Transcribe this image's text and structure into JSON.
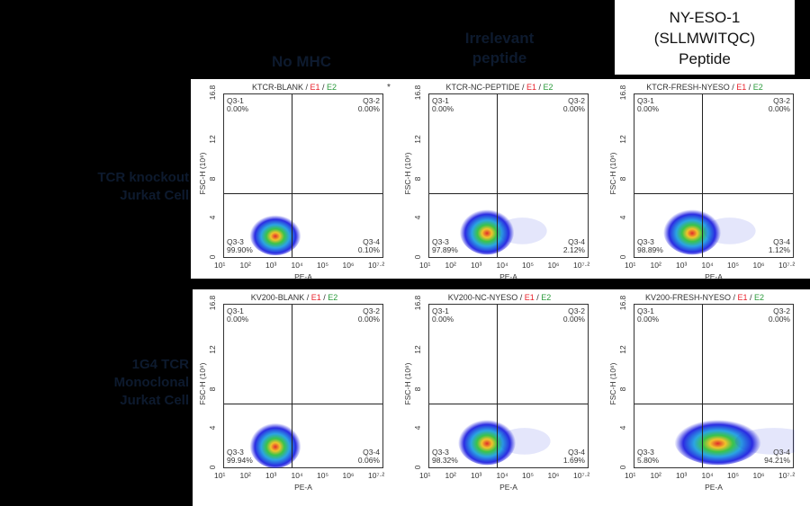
{
  "column_headers": [
    "No MHC",
    "Irrelevant peptide",
    "NY-ESO-1 (SLLMWITQC) Peptide"
  ],
  "nyeso_box": {
    "line1": "NY-ESO-1",
    "line2": "(SLLMWITQC)",
    "line3": "Peptide"
  },
  "col_head_1": {
    "line1": "No MHC"
  },
  "col_head_2": {
    "line1": "Irrelevant",
    "line2": "peptide"
  },
  "row_headers": [
    {
      "line1": "TCR knockout",
      "line2": "Jurkat Cell"
    },
    {
      "line1": "1G4 TCR",
      "line2": "Monoclonal",
      "line3": "Jurkat Cell"
    }
  ],
  "axes": {
    "x_label": "PE-A",
    "y_label": "FSC-H (10⁶)",
    "y_ticks": [
      "0",
      "4",
      "8",
      "12",
      "16.8"
    ],
    "x_ticks": [
      "10¹",
      "10²",
      "10³",
      "10⁴",
      "10⁵",
      "10⁶",
      "10⁷·²"
    ]
  },
  "title_suffix": {
    "sep": " / ",
    "e1": "E1",
    "e2": "E2"
  },
  "plots": [
    {
      "name": "KTCR-BLANK",
      "q1": "Q3-1",
      "q1v": "0.00%",
      "q2": "Q3-2",
      "q2v": "0.00%",
      "q3": "Q3-3",
      "q3v": "99.90%",
      "q4": "Q3-4",
      "q4v": "0.10%"
    },
    {
      "name": "KTCR-NC-PEPTIDE",
      "q1": "Q3-1",
      "q1v": "0.00%",
      "q2": "Q3-2",
      "q2v": "0.00%",
      "q3": "Q3-3",
      "q3v": "97.89%",
      "q4": "Q3-4",
      "q4v": "2.12%"
    },
    {
      "name": "KTCR-FRESH-NYESO",
      "q1": "Q3-1",
      "q1v": "0.00%",
      "q2": "Q3-2",
      "q2v": "0.00%",
      "q3": "Q3-3",
      "q3v": "98.89%",
      "q4": "Q3-4",
      "q4v": "1.12%"
    },
    {
      "name": "KV200-BLANK",
      "q1": "Q3-1",
      "q1v": "0.00%",
      "q2": "Q3-2",
      "q2v": "0.00%",
      "q3": "Q3-3",
      "q3v": "99.94%",
      "q4": "Q3-4",
      "q4v": "0.06%"
    },
    {
      "name": "KV200-NC-NYESO",
      "q1": "Q3-1",
      "q1v": "0.00%",
      "q2": "Q3-2",
      "q2v": "0.00%",
      "q3": "Q3-3",
      "q3v": "98.32%",
      "q4": "Q3-4",
      "q4v": "1.69%"
    },
    {
      "name": "KV200-FRESH-NYESO",
      "q1": "Q3-1",
      "q1v": "0.00%",
      "q2": "Q3-2",
      "q2v": "0.00%",
      "q3": "Q3-3",
      "q3v": "5.80%",
      "q4": "Q3-4",
      "q4v": "94.21%"
    }
  ],
  "star_mark": "*",
  "chart_data": [
    {
      "type": "scatter",
      "title": "KTCR-BLANK / E1 / E2",
      "xlabel": "PE-A",
      "ylabel": "FSC-H (10^6)",
      "xscale": "log",
      "xlim": [
        10,
        15848931
      ],
      "ylim": [
        0,
        16.8
      ],
      "quadrants": {
        "Q3-1": 0.0,
        "Q3-2": 0.0,
        "Q3-3": 99.9,
        "Q3-4": 0.1
      },
      "density_center": {
        "x": 1000,
        "y": 2.5
      }
    },
    {
      "type": "scatter",
      "title": "KTCR-NC-PEPTIDE / E1 / E2",
      "xlabel": "PE-A",
      "ylabel": "FSC-H (10^6)",
      "xscale": "log",
      "xlim": [
        10,
        15848931
      ],
      "ylim": [
        0,
        16.8
      ],
      "quadrants": {
        "Q3-1": 0.0,
        "Q3-2": 0.0,
        "Q3-3": 97.89,
        "Q3-4": 2.12
      },
      "density_center": {
        "x": 1500,
        "y": 2.8
      }
    },
    {
      "type": "scatter",
      "title": "KTCR-FRESH-NYESO / E1 / E2",
      "xlabel": "PE-A",
      "ylabel": "FSC-H (10^6)",
      "xscale": "log",
      "xlim": [
        10,
        15848931
      ],
      "ylim": [
        0,
        16.8
      ],
      "quadrants": {
        "Q3-1": 0.0,
        "Q3-2": 0.0,
        "Q3-3": 98.89,
        "Q3-4": 1.12
      },
      "density_center": {
        "x": 1500,
        "y": 2.8
      }
    },
    {
      "type": "scatter",
      "title": "KV200-BLANK / E1 / E2",
      "xlabel": "PE-A",
      "ylabel": "FSC-H (10^6)",
      "xscale": "log",
      "xlim": [
        10,
        15848931
      ],
      "ylim": [
        0,
        16.8
      ],
      "quadrants": {
        "Q3-1": 0.0,
        "Q3-2": 0.0,
        "Q3-3": 99.94,
        "Q3-4": 0.06
      },
      "density_center": {
        "x": 900,
        "y": 2.4
      }
    },
    {
      "type": "scatter",
      "title": "KV200-NC-NYESO / E1 / E2",
      "xlabel": "PE-A",
      "ylabel": "FSC-H (10^6)",
      "xscale": "log",
      "xlim": [
        10,
        15848931
      ],
      "ylim": [
        0,
        16.8
      ],
      "quadrants": {
        "Q3-1": 0.0,
        "Q3-2": 0.0,
        "Q3-3": 98.32,
        "Q3-4": 1.69
      },
      "density_center": {
        "x": 1500,
        "y": 3.0
      }
    },
    {
      "type": "scatter",
      "title": "KV200-FRESH-NYESO / E1 / E2",
      "xlabel": "PE-A",
      "ylabel": "FSC-H (10^6)",
      "xscale": "log",
      "xlim": [
        10,
        15848931
      ],
      "ylim": [
        0,
        16.8
      ],
      "quadrants": {
        "Q3-1": 0.0,
        "Q3-2": 0.0,
        "Q3-3": 5.8,
        "Q3-4": 94.21
      },
      "density_center": {
        "x": 20000,
        "y": 3.0
      }
    }
  ]
}
